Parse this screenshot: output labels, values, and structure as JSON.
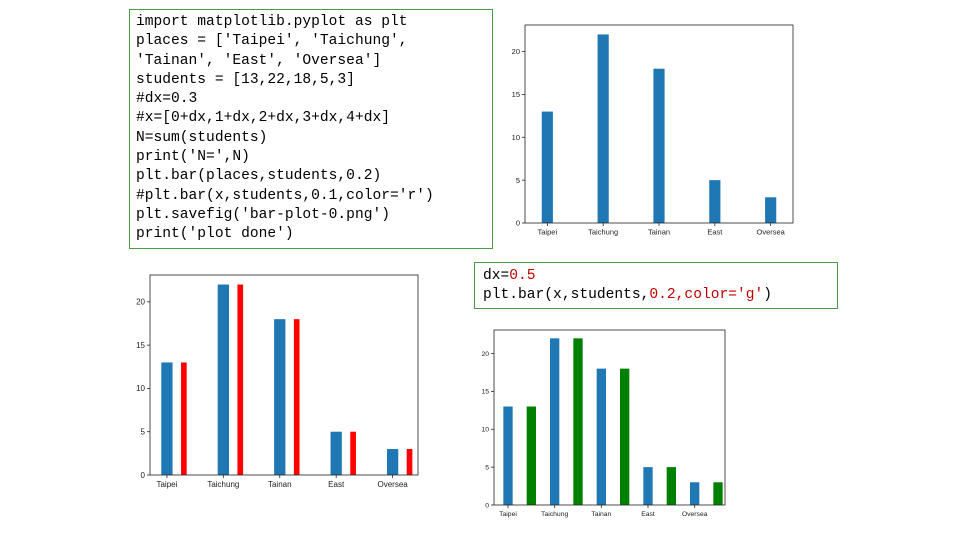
{
  "code_main": {
    "lines": [
      "import matplotlib.pyplot as plt",
      "places = ['Taipei', 'Taichung',",
      "'Tainan', 'East', 'Oversea']",
      "students = [13,22,18,5,3]",
      "#dx=0.3",
      "#x=[0+dx,1+dx,2+dx,3+dx,4+dx]",
      "N=sum(students)",
      "print('N=',N)",
      "plt.bar(places,students,0.2)",
      "#plt.bar(x,students,0.1,color='r')",
      "plt.savefig('bar-plot-0.png')",
      "print('plot done')"
    ]
  },
  "code_small": {
    "line1_prefix": "dx=",
    "line1_value": "0.5",
    "line2_prefix": "plt.bar(x,students,",
    "line2_value": "0.2,color='g'",
    "line2_suffix": ")"
  },
  "colors": {
    "blue": "#1f77b4",
    "red": "#ff0000",
    "green": "#008000"
  },
  "chart_data": [
    {
      "id": "chart-1",
      "type": "bar",
      "categories": [
        "Taipei",
        "Taichung",
        "Tainan",
        "East",
        "Oversea"
      ],
      "series": [
        {
          "values": [
            13,
            22,
            18,
            5,
            3
          ],
          "color": "#1f77b4",
          "offset": 0,
          "width": 0.2
        }
      ],
      "yticks": [
        0,
        5,
        10,
        15,
        20
      ],
      "ylim": [
        0,
        23.1
      ],
      "xlim": [
        -0.4,
        4.4
      ],
      "title": "",
      "xlabel": "",
      "ylabel": ""
    },
    {
      "id": "chart-2",
      "type": "bar",
      "categories": [
        "Taipei",
        "Taichung",
        "Tainan",
        "East",
        "Oversea"
      ],
      "series": [
        {
          "values": [
            13,
            22,
            18,
            5,
            3
          ],
          "color": "#1f77b4",
          "offset": 0,
          "width": 0.2
        },
        {
          "values": [
            13,
            22,
            18,
            5,
            3
          ],
          "color": "#ff0000",
          "offset": 0.3,
          "width": 0.1
        }
      ],
      "yticks": [
        0,
        5,
        10,
        15,
        20
      ],
      "ylim": [
        0,
        23.1
      ],
      "xlim": [
        -0.3,
        4.45
      ],
      "title": "",
      "xlabel": "",
      "ylabel": ""
    },
    {
      "id": "chart-3",
      "type": "bar",
      "categories": [
        "Taipei",
        "Taichung",
        "Tainan",
        "East",
        "Oversea"
      ],
      "series": [
        {
          "values": [
            13,
            22,
            18,
            5,
            3
          ],
          "color": "#1f77b4",
          "offset": 0,
          "width": 0.2
        },
        {
          "values": [
            13,
            22,
            18,
            5,
            3
          ],
          "color": "#008000",
          "offset": 0.5,
          "width": 0.2
        }
      ],
      "yticks": [
        0,
        5,
        10,
        15,
        20
      ],
      "ylim": [
        0,
        23.1
      ],
      "xlim": [
        -0.3,
        4.65
      ],
      "title": "",
      "xlabel": "",
      "ylabel": ""
    }
  ]
}
